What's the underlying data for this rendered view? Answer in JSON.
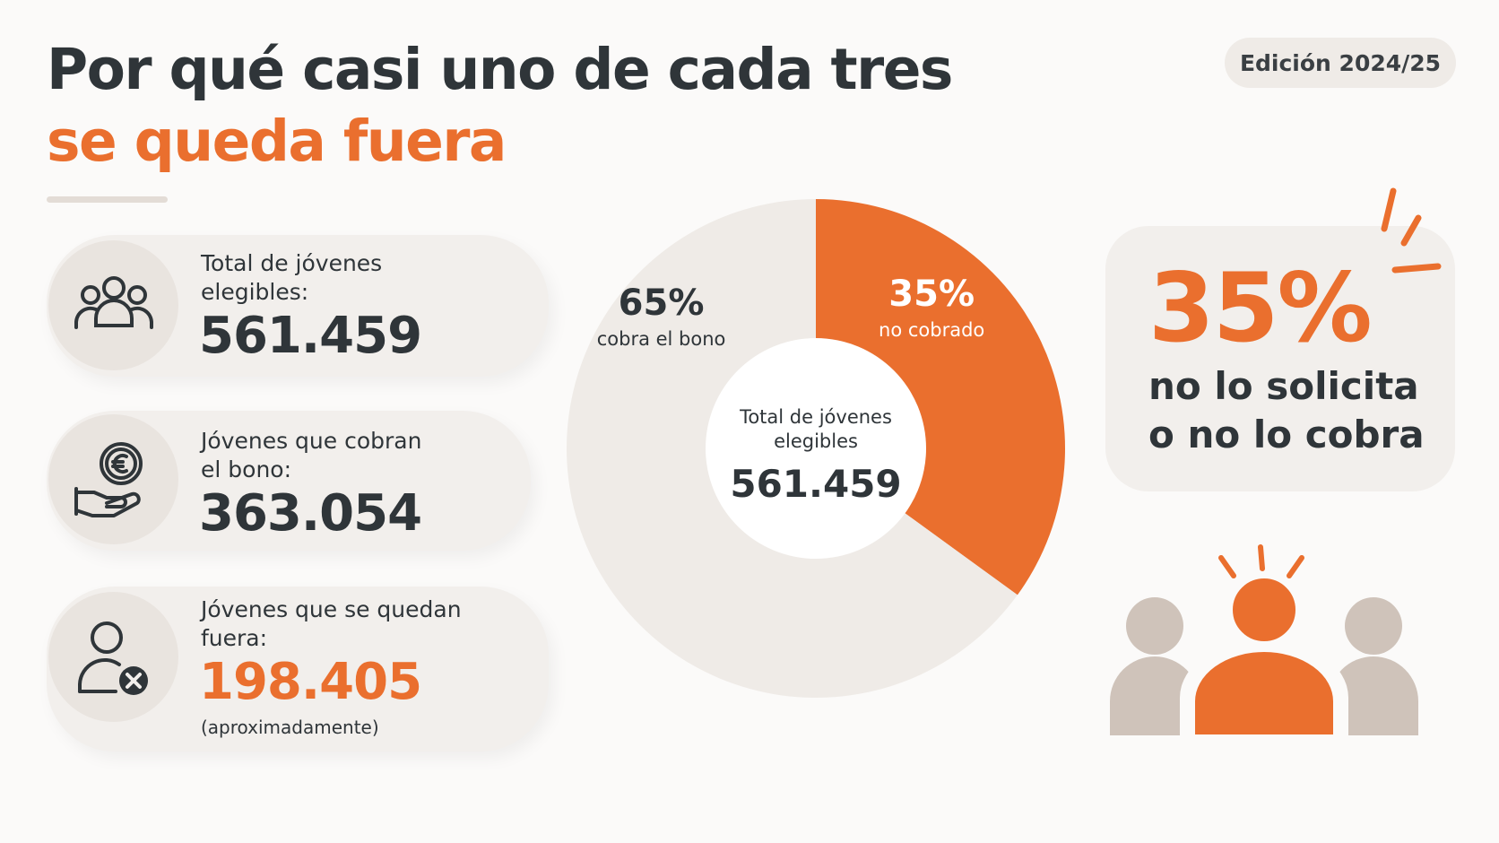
{
  "title": {
    "line1": "Por qué casi uno de cada tres",
    "line2": "se queda fuera"
  },
  "edition": "Edición 2024/25",
  "stats": [
    {
      "label_line1": "Total de jóvenes",
      "label_line2": "elegibles:",
      "value": "561.459",
      "icon": "people-group-icon"
    },
    {
      "label_line1": "Jóvenes que cobran",
      "label_line2": "el bono:",
      "value": "363.054",
      "icon": "euro-hand-icon"
    },
    {
      "label_line1": "Jóvenes que se quedan",
      "label_line2": "fuera:",
      "value": "198.405",
      "note": "(aproximadamente)",
      "icon": "user-x-icon"
    }
  ],
  "chart_data": {
    "type": "pie",
    "hole": true,
    "center_label_line1": "Total de jóvenes",
    "center_label_line2": "elegibles",
    "center_value": "561.459",
    "slices": [
      {
        "label": "no cobrado",
        "value": 35,
        "display": "35%",
        "color": "#ea6f2e"
      },
      {
        "label": "cobra el bono",
        "value": 65,
        "display": "65%",
        "color": "#efebe7"
      }
    ]
  },
  "callout": {
    "percent": "35%",
    "line1": "no lo solicita",
    "line2": "o no lo cobra"
  },
  "colors": {
    "accent": "#ea6f2e",
    "dark": "#2f3539",
    "muted": "#cfc3ba",
    "panel": "#f2efec"
  }
}
